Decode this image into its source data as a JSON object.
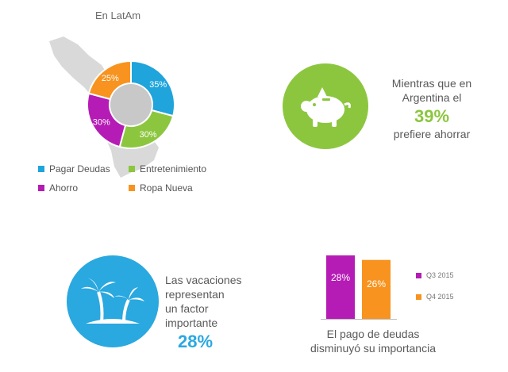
{
  "title": "En LatAm",
  "colors": {
    "blue": "#1fa4dc",
    "green": "#8cc63f",
    "purple": "#b51cb5",
    "orange": "#f7931e",
    "gray": "#c8c8c8",
    "map": "#d9d9d9"
  },
  "chart_data": [
    {
      "type": "pie",
      "title": "En LatAm",
      "slices": [
        {
          "label": "Pagar Deudas",
          "value": 35,
          "display": "35%",
          "color": "#1fa4dc"
        },
        {
          "label": "Entretenimiento",
          "value": 30,
          "display": "30%",
          "color": "#8cc63f"
        },
        {
          "label": "Ahorro",
          "value": 30,
          "display": "30%",
          "color": "#b51cb5"
        },
        {
          "label": "Ropa Nueva",
          "value": 25,
          "display": "25%",
          "color": "#f7931e"
        }
      ],
      "legend_placement": "bottom"
    },
    {
      "type": "bar",
      "categories": [
        "Q3 2015",
        "Q4 2015"
      ],
      "values": [
        28,
        26
      ],
      "display": [
        "28%",
        "26%"
      ],
      "colors": [
        "#b51cb5",
        "#f7931e"
      ],
      "caption": [
        "El pago de deudas",
        "disminuyó su importancia"
      ],
      "legend_placement": "right"
    }
  ],
  "legend": [
    "Pagar Deudas",
    "Entretenimiento",
    "Ahorro",
    "Ropa Nueva"
  ],
  "argentina": {
    "line1": "Mientras que en",
    "line2": "Argentina el",
    "stat": "39%",
    "line3": "prefiere ahorrar",
    "icon": "piggy-bank-icon"
  },
  "vacaciones": {
    "line1": "Las vacaciones",
    "line2": "representan",
    "line3": "un factor",
    "line4": "importante",
    "stat": "28%",
    "icon": "palm-tree-icon"
  },
  "bars": {
    "labels": [
      "28%",
      "26%"
    ],
    "legend": [
      "Q3 2015",
      "Q4 2015"
    ],
    "caption1": "El pago de deudas",
    "caption2": "disminuyó su importancia"
  }
}
